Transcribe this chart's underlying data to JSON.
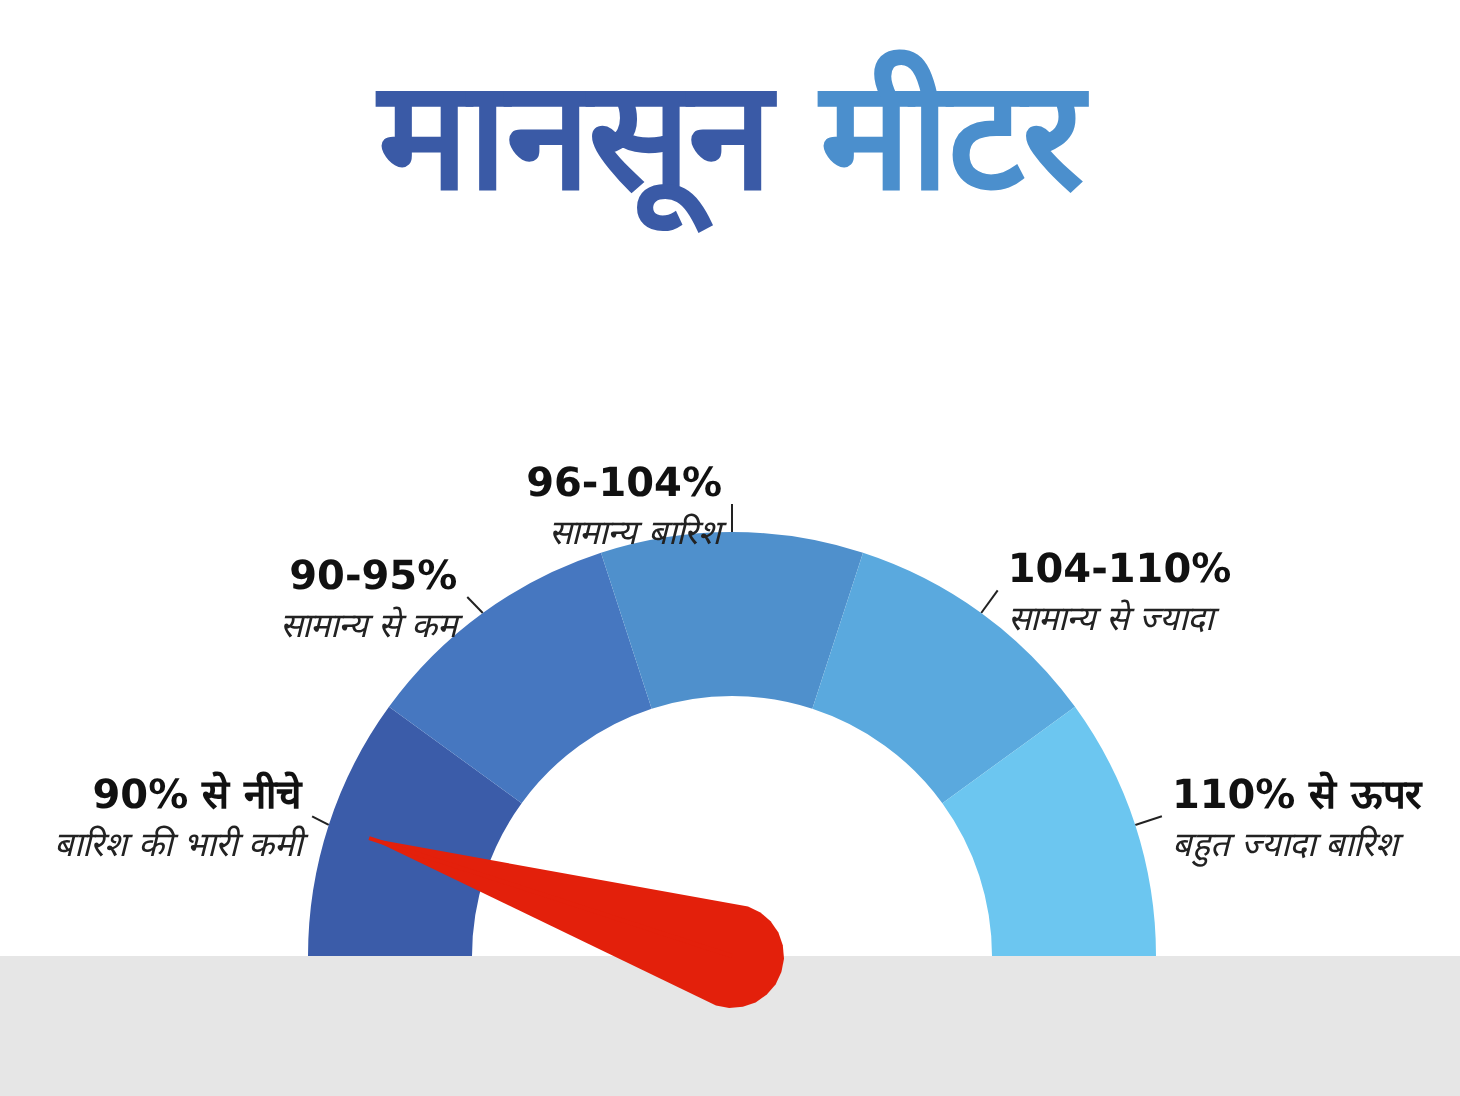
{
  "chart_data": {
    "type": "donut",
    "title": "मानसून मीटर",
    "categories": [
      "90% से नीचे\nबारिश की भारी कमी",
      "90-95%\nसामान्य से कम",
      "96-104%\nसामान्य बारिश",
      "104-110%\nसामान्य से ज्यादा",
      "110% से ऊपर\nबहुत ज्यादा बारिश"
    ],
    "values": [
      20,
      20,
      20,
      20,
      20
    ],
    "colors": [
      "#3b5ca9",
      "#4677c0",
      "#4f90cc",
      "#5aa9de",
      "#6cc6f0"
    ],
    "needle": "90% से नीचे\nबारिश की भारी कमी",
    "legend": false
  }
}
